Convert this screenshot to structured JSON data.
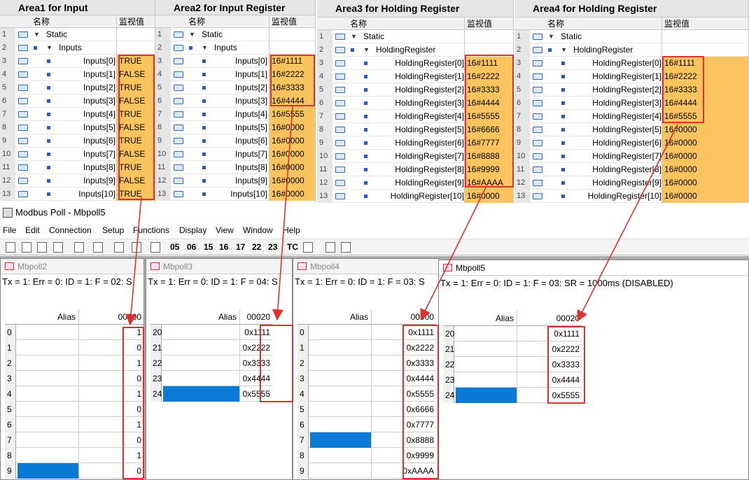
{
  "areas": [
    {
      "title": "Area1 for Input",
      "col_name": "名称",
      "col_value": "监视值",
      "rows": [
        {
          "n": "1",
          "name": "Static",
          "value": "",
          "kind": "static"
        },
        {
          "n": "2",
          "name": "Inputs",
          "value": "",
          "kind": "group"
        },
        {
          "n": "3",
          "name": "Inputs[0]",
          "value": "TRUE"
        },
        {
          "n": "4",
          "name": "Inputs[1]",
          "value": "FALSE"
        },
        {
          "n": "5",
          "name": "Inputs[2]",
          "value": "TRUE"
        },
        {
          "n": "6",
          "name": "Inputs[3]",
          "value": "FALSE"
        },
        {
          "n": "7",
          "name": "Inputs[4]",
          "value": "TRUE"
        },
        {
          "n": "8",
          "name": "Inputs[5]",
          "value": "FALSE"
        },
        {
          "n": "9",
          "name": "Inputs[6]",
          "value": "TRUE"
        },
        {
          "n": "10",
          "name": "Inputs[7]",
          "value": "FALSE"
        },
        {
          "n": "11",
          "name": "Inputs[8]",
          "value": "TRUE"
        },
        {
          "n": "12",
          "name": "Inputs[9]",
          "value": "FALSE"
        },
        {
          "n": "13",
          "name": "Inputs[10]",
          "value": "TRUE"
        }
      ]
    },
    {
      "title": "Area2 for Input Register",
      "col_name": "名称",
      "col_value": "监视值",
      "rows": [
        {
          "n": "1",
          "name": "Static",
          "value": "",
          "kind": "static"
        },
        {
          "n": "2",
          "name": "Inputs",
          "value": "",
          "kind": "group"
        },
        {
          "n": "3",
          "name": "Inputs[0]",
          "value": "16#1111"
        },
        {
          "n": "4",
          "name": "Inputs[1]",
          "value": "16#2222"
        },
        {
          "n": "5",
          "name": "Inputs[2]",
          "value": "16#3333"
        },
        {
          "n": "6",
          "name": "Inputs[3]",
          "value": "16#4444"
        },
        {
          "n": "7",
          "name": "Inputs[4]",
          "value": "16#5555"
        },
        {
          "n": "8",
          "name": "Inputs[5]",
          "value": "16#0000"
        },
        {
          "n": "9",
          "name": "Inputs[6]",
          "value": "16#0000"
        },
        {
          "n": "10",
          "name": "Inputs[7]",
          "value": "16#0000"
        },
        {
          "n": "11",
          "name": "Inputs[8]",
          "value": "16#0000"
        },
        {
          "n": "12",
          "name": "Inputs[9]",
          "value": "16#0000"
        },
        {
          "n": "13",
          "name": "Inputs[10]",
          "value": "16#0000"
        }
      ]
    },
    {
      "title": "Area3 for Holding Register",
      "col_name": "名称",
      "col_value": "监视值",
      "rows": [
        {
          "n": "1",
          "name": "Static",
          "value": "",
          "kind": "static"
        },
        {
          "n": "2",
          "name": "HoldingRegister",
          "value": "",
          "kind": "group"
        },
        {
          "n": "3",
          "name": "HoldingRegister[0]",
          "value": "16#1111"
        },
        {
          "n": "4",
          "name": "HoldingRegister[1]",
          "value": "16#2222"
        },
        {
          "n": "5",
          "name": "HoldingRegister[2]",
          "value": "16#3333"
        },
        {
          "n": "6",
          "name": "HoldingRegister[3]",
          "value": "16#4444"
        },
        {
          "n": "7",
          "name": "HoldingRegister[4]",
          "value": "16#5555"
        },
        {
          "n": "8",
          "name": "HoldingRegister[5]",
          "value": "16#6666"
        },
        {
          "n": "9",
          "name": "HoldingRegister[6]",
          "value": "16#7777"
        },
        {
          "n": "10",
          "name": "HoldingRegister[7]",
          "value": "16#8888"
        },
        {
          "n": "11",
          "name": "HoldingRegister[8]",
          "value": "16#9999"
        },
        {
          "n": "12",
          "name": "HoldingRegister[9]",
          "value": "16#AAAA"
        },
        {
          "n": "13",
          "name": "HoldingRegister[10]",
          "value": "16#0000"
        }
      ]
    },
    {
      "title": "Area4 for Holding Register",
      "col_name": "名称",
      "col_value": "监视值",
      "rows": [
        {
          "n": "1",
          "name": "Static",
          "value": "",
          "kind": "static"
        },
        {
          "n": "2",
          "name": "HoldingRegister",
          "value": "",
          "kind": "group"
        },
        {
          "n": "3",
          "name": "HoldingRegister[0]",
          "value": "16#1111"
        },
        {
          "n": "4",
          "name": "HoldingRegister[1]",
          "value": "16#2222"
        },
        {
          "n": "5",
          "name": "HoldingRegister[2]",
          "value": "16#3333"
        },
        {
          "n": "6",
          "name": "HoldingRegister[3]",
          "value": "16#4444"
        },
        {
          "n": "7",
          "name": "HoldingRegister[4]",
          "value": "16#5555"
        },
        {
          "n": "8",
          "name": "HoldingRegister[5]",
          "value": "16#0000"
        },
        {
          "n": "9",
          "name": "HoldingRegister[6]",
          "value": "16#0000"
        },
        {
          "n": "10",
          "name": "HoldingRegister[7]",
          "value": "16#0000"
        },
        {
          "n": "11",
          "name": "HoldingRegister[8]",
          "value": "16#0000"
        },
        {
          "n": "12",
          "name": "HoldingRegister[9]",
          "value": "16#0000"
        },
        {
          "n": "13",
          "name": "HoldingRegister[10]",
          "value": "16#0000"
        }
      ]
    }
  ],
  "app": {
    "title": "Modbus Poll - Mbpoll5"
  },
  "menu": [
    "File",
    "Edit",
    "Connection",
    "Setup",
    "Functions",
    "Display",
    "View",
    "Window",
    "Help"
  ],
  "toolbar": {
    "codes": [
      "05",
      "06",
      "15",
      "16",
      "17",
      "22",
      "23"
    ],
    "tc": "TC",
    "icons": [
      "new-icon",
      "open-icon",
      "save-icon",
      "print-icon",
      "delete-icon",
      "window-icon",
      "read-icon",
      "write-icon",
      "pulse-icon",
      "monitor-icon",
      "help-icon",
      "context-help-icon"
    ]
  },
  "windows": [
    {
      "title": "Mbpoll2",
      "status": "Tx = 1: Err = 0: ID = 1: F = 02: S",
      "alias": "Alias",
      "addr": "00000",
      "rows": [
        {
          "n": "0",
          "v": "1"
        },
        {
          "n": "1",
          "v": "0"
        },
        {
          "n": "2",
          "v": "1"
        },
        {
          "n": "3",
          "v": "0"
        },
        {
          "n": "4",
          "v": "1"
        },
        {
          "n": "5",
          "v": "0"
        },
        {
          "n": "6",
          "v": "1"
        },
        {
          "n": "7",
          "v": "0"
        },
        {
          "n": "8",
          "v": "1"
        },
        {
          "n": "9",
          "v": "0"
        }
      ],
      "selected_row": "9"
    },
    {
      "title": "Mbpoll3",
      "status": "Tx = 1: Err = 0: ID = 1: F = 04: S",
      "alias": "Alias",
      "addr": "00020",
      "rows": [
        {
          "n": "20",
          "v": "0x1111"
        },
        {
          "n": "21",
          "v": "0x2222"
        },
        {
          "n": "22",
          "v": "0x3333"
        },
        {
          "n": "23",
          "v": "0x4444"
        },
        {
          "n": "24",
          "v": "0x5555"
        }
      ],
      "selected_row": "24"
    },
    {
      "title": "Mbpoll4",
      "status": "Tx = 1: Err = 0: ID = 1: F = 03: S",
      "alias": "Alias",
      "addr": "00000",
      "rows": [
        {
          "n": "0",
          "v": "0x1111"
        },
        {
          "n": "1",
          "v": "0x2222"
        },
        {
          "n": "2",
          "v": "0x3333"
        },
        {
          "n": "3",
          "v": "0x4444"
        },
        {
          "n": "4",
          "v": "0x5555"
        },
        {
          "n": "5",
          "v": "0x6666"
        },
        {
          "n": "6",
          "v": "0x7777"
        },
        {
          "n": "7",
          "v": "0x8888"
        },
        {
          "n": "8",
          "v": "0x9999"
        },
        {
          "n": "9",
          "v": "0xAAAA"
        }
      ],
      "selected_row": "7"
    },
    {
      "title": "Mbpoll5",
      "status": "Tx = 1: Err = 0: ID = 1: F = 03: SR = 1000ms  (DISABLED)",
      "alias": "Alias",
      "addr": "00020",
      "rows": [
        {
          "n": "20",
          "v": "0x1111"
        },
        {
          "n": "21",
          "v": "0x2222"
        },
        {
          "n": "22",
          "v": "0x3333"
        },
        {
          "n": "23",
          "v": "0x4444"
        },
        {
          "n": "24",
          "v": "0x5555"
        }
      ],
      "selected_row": "24"
    }
  ],
  "colors": {
    "monitor_fill": "#fcc45e",
    "highlight_box": "#e03030",
    "selection": "#0a7ad6"
  }
}
